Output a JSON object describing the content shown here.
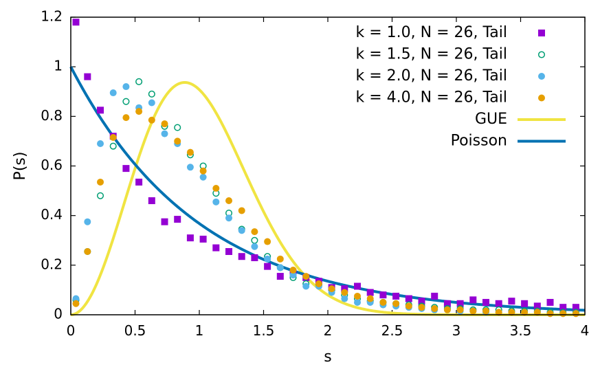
{
  "chart_data": {
    "type": "scatter",
    "title": "",
    "xlabel": "s",
    "ylabel": "P(s)",
    "xlim": [
      0,
      4
    ],
    "ylim": [
      0,
      1.2
    ],
    "xticks": [
      0,
      0.5,
      1,
      1.5,
      2,
      2.5,
      3,
      3.5,
      4
    ],
    "xtick_labels": [
      "0",
      "0.5",
      "1",
      "1.5",
      "2",
      "2.5",
      "3",
      "3.5",
      "4"
    ],
    "yticks": [
      0,
      0.2,
      0.4,
      0.6,
      0.8,
      1,
      1.2
    ],
    "ytick_labels": [
      "0",
      "0.2",
      "0.4",
      "0.6",
      "0.8",
      "1",
      "1.2"
    ],
    "grid": false,
    "legend_position": "top-right",
    "series": [
      {
        "name": "k = 1.0, N = 26, Tail",
        "kind": "points",
        "marker": "square",
        "color": "#9400d3",
        "x": [
          0.04,
          0.13,
          0.23,
          0.33,
          0.43,
          0.53,
          0.63,
          0.73,
          0.83,
          0.93,
          1.03,
          1.13,
          1.23,
          1.33,
          1.43,
          1.53,
          1.63,
          1.73,
          1.83,
          1.93,
          2.03,
          2.13,
          2.23,
          2.33,
          2.43,
          2.53,
          2.63,
          2.73,
          2.83,
          2.93,
          3.03,
          3.13,
          3.23,
          3.33,
          3.43,
          3.53,
          3.63,
          3.73,
          3.83,
          3.93
        ],
        "y": [
          1.18,
          0.96,
          0.825,
          0.72,
          0.59,
          0.535,
          0.46,
          0.375,
          0.385,
          0.31,
          0.305,
          0.27,
          0.255,
          0.235,
          0.23,
          0.195,
          0.155,
          0.17,
          0.15,
          0.135,
          0.11,
          0.105,
          0.115,
          0.09,
          0.08,
          0.075,
          0.065,
          0.055,
          0.075,
          0.045,
          0.045,
          0.06,
          0.05,
          0.045,
          0.055,
          0.045,
          0.035,
          0.05,
          0.03,
          0.03
        ]
      },
      {
        "name": "k = 1.5, N = 26, Tail",
        "kind": "points",
        "marker": "open-circle",
        "color": "#009e73",
        "x": [
          0.04,
          0.13,
          0.23,
          0.33,
          0.43,
          0.53,
          0.63,
          0.73,
          0.83,
          0.93,
          1.03,
          1.13,
          1.23,
          1.33,
          1.43,
          1.53,
          1.63,
          1.73,
          1.83,
          1.93,
          2.03,
          2.13,
          2.23,
          2.33,
          2.43,
          2.53,
          2.63,
          2.73,
          2.83,
          2.93,
          3.03,
          3.13,
          3.23,
          3.33,
          3.43,
          3.53,
          3.63,
          3.73,
          3.83,
          3.93
        ],
        "y": [
          0.06,
          0.255,
          0.48,
          0.68,
          0.86,
          0.94,
          0.89,
          0.76,
          0.755,
          0.645,
          0.6,
          0.49,
          0.41,
          0.345,
          0.3,
          0.235,
          0.19,
          0.15,
          0.125,
          0.12,
          0.1,
          0.08,
          0.065,
          0.055,
          0.05,
          0.045,
          0.04,
          0.035,
          0.03,
          0.025,
          0.025,
          0.02,
          0.02,
          0.02,
          0.015,
          0.015,
          0.015,
          0.01,
          0.01,
          0.01
        ]
      },
      {
        "name": "k = 2.0, N = 26, Tail",
        "kind": "points",
        "marker": "circle",
        "color": "#56b4e9",
        "x": [
          0.04,
          0.13,
          0.23,
          0.33,
          0.43,
          0.53,
          0.63,
          0.73,
          0.83,
          0.93,
          1.03,
          1.13,
          1.23,
          1.33,
          1.43,
          1.53,
          1.63,
          1.73,
          1.83,
          1.93,
          2.03,
          2.13,
          2.23,
          2.33,
          2.43,
          2.53,
          2.63,
          2.73,
          2.83,
          2.93,
          3.03,
          3.13,
          3.23,
          3.33,
          3.43,
          3.53,
          3.63,
          3.73,
          3.83,
          3.93
        ],
        "y": [
          0.065,
          0.375,
          0.69,
          0.895,
          0.92,
          0.835,
          0.855,
          0.73,
          0.69,
          0.595,
          0.555,
          0.455,
          0.39,
          0.34,
          0.275,
          0.225,
          0.19,
          0.16,
          0.115,
          0.115,
          0.09,
          0.065,
          0.05,
          0.05,
          0.04,
          0.035,
          0.03,
          0.025,
          0.02,
          0.02,
          0.015,
          0.015,
          0.01,
          0.01,
          0.01,
          0.01,
          0.01,
          0.005,
          0.005,
          0.005
        ]
      },
      {
        "name": "k = 4.0, N = 26, Tail",
        "kind": "points",
        "marker": "circle",
        "color": "#e69f00",
        "x": [
          0.04,
          0.13,
          0.23,
          0.33,
          0.43,
          0.53,
          0.63,
          0.73,
          0.83,
          0.93,
          1.03,
          1.13,
          1.23,
          1.33,
          1.43,
          1.53,
          1.63,
          1.73,
          1.83,
          1.93,
          2.03,
          2.13,
          2.23,
          2.33,
          2.43,
          2.53,
          2.63,
          2.73,
          2.83,
          2.93,
          3.03,
          3.13,
          3.23,
          3.33,
          3.43,
          3.53,
          3.63,
          3.73,
          3.83,
          3.93
        ],
        "y": [
          0.045,
          0.255,
          0.535,
          0.715,
          0.795,
          0.82,
          0.785,
          0.77,
          0.7,
          0.655,
          0.58,
          0.51,
          0.46,
          0.42,
          0.335,
          0.295,
          0.225,
          0.18,
          0.155,
          0.125,
          0.105,
          0.09,
          0.075,
          0.065,
          0.05,
          0.045,
          0.035,
          0.03,
          0.025,
          0.02,
          0.02,
          0.015,
          0.015,
          0.01,
          0.01,
          0.01,
          0.01,
          0.005,
          0.005,
          0.005
        ]
      },
      {
        "name": "GUE",
        "kind": "line",
        "color": "#f0e442",
        "formula": "(32/pi^2) s^2 exp(-4 s^2 / pi)"
      },
      {
        "name": "Poisson",
        "kind": "line",
        "color": "#0072b2",
        "formula": "exp(-s)"
      }
    ]
  }
}
